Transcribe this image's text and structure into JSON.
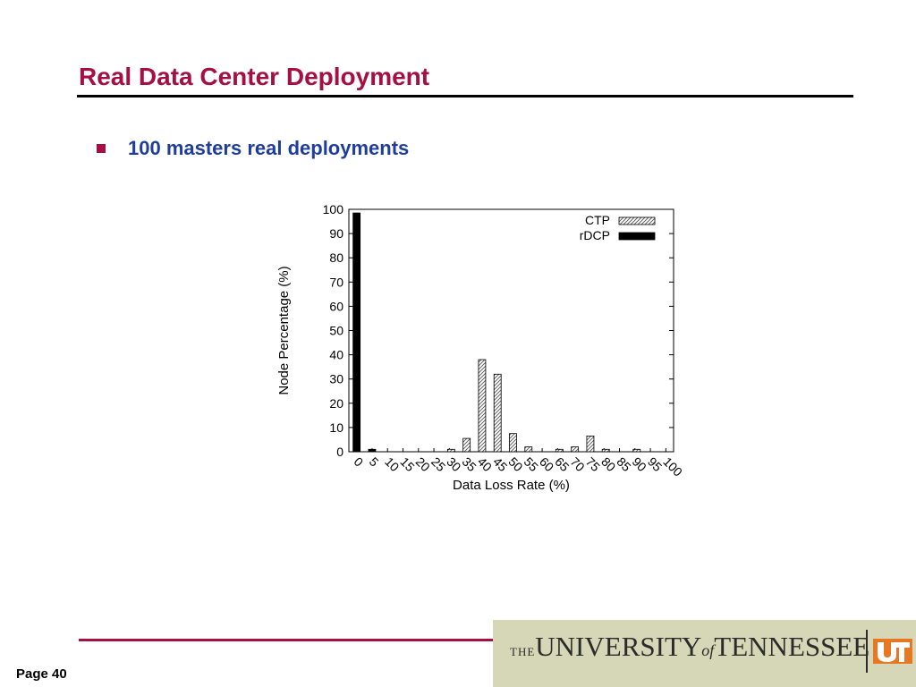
{
  "slide": {
    "title": "Real Data Center Deployment",
    "bullet": "100 masters real deployments",
    "page_label": "Page 40"
  },
  "footer": {
    "logo_the": "THE",
    "logo_university": "UNIVERSITY",
    "logo_of": "of",
    "logo_tennessee": "TENNESSEE",
    "ut_mark": "UT"
  },
  "colors": {
    "title": "#a50f42",
    "bullet_text": "#1f3d9c",
    "accent_rule": "#a50f42",
    "logo_panel": "#d6d7b7",
    "ut_orange": "#e87722"
  },
  "chart_data": {
    "type": "bar",
    "title": "",
    "xlabel": "Data Loss Rate (%)",
    "ylabel": "Node Percentage (%)",
    "ylim": [
      0,
      100
    ],
    "yticks": [
      0,
      10,
      20,
      30,
      40,
      50,
      60,
      70,
      80,
      90,
      100
    ],
    "categories": [
      "0",
      "5",
      "10",
      "15",
      "20",
      "25",
      "30",
      "35",
      "40",
      "45",
      "50",
      "55",
      "60",
      "65",
      "70",
      "75",
      "80",
      "85",
      "90",
      "95",
      "100"
    ],
    "legend_position": "top-right",
    "grid": false,
    "series": [
      {
        "name": "CTP",
        "style": "hatched",
        "values": [
          0,
          0,
          0,
          0,
          0,
          0,
          1,
          5.5,
          38,
          32,
          7.5,
          2,
          0,
          1,
          2,
          6.5,
          1,
          0,
          1,
          0,
          0
        ]
      },
      {
        "name": "rDCP",
        "style": "solid-black",
        "values": [
          98.5,
          1,
          0,
          0,
          0,
          0,
          0,
          0,
          0,
          0,
          0,
          0,
          0,
          0,
          0,
          0,
          0,
          0,
          0,
          0,
          0
        ]
      }
    ]
  }
}
